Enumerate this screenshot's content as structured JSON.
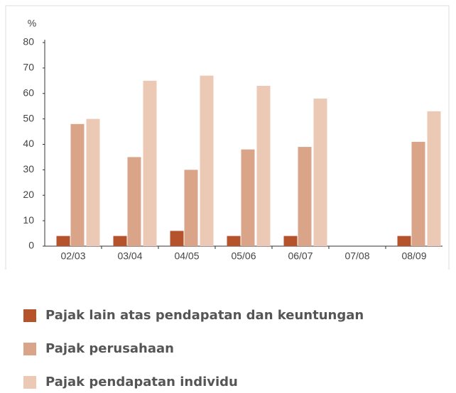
{
  "chart_data": {
    "type": "bar",
    "y_axis_label": "%",
    "categories": [
      "02/03",
      "03/04",
      "04/05",
      "05/06",
      "06/07",
      "07/08",
      "08/09"
    ],
    "series": [
      {
        "name": "Pajak lain atas pendapatan dan  keuntungan",
        "color": "#b5532a",
        "values": [
          4,
          4,
          6,
          4,
          4,
          null,
          4
        ]
      },
      {
        "name": "Pajak perusahaan",
        "color": "#d9a488",
        "values": [
          48,
          35,
          30,
          38,
          39,
          null,
          41
        ]
      },
      {
        "name": "Pajak pendapatan individu",
        "color": "#ecc9b5",
        "values": [
          50,
          65,
          67,
          63,
          58,
          null,
          53
        ]
      }
    ],
    "ylim": [
      0,
      80
    ],
    "yticks": [
      0,
      10,
      20,
      30,
      40,
      50,
      60,
      70,
      80
    ],
    "grid": false
  }
}
